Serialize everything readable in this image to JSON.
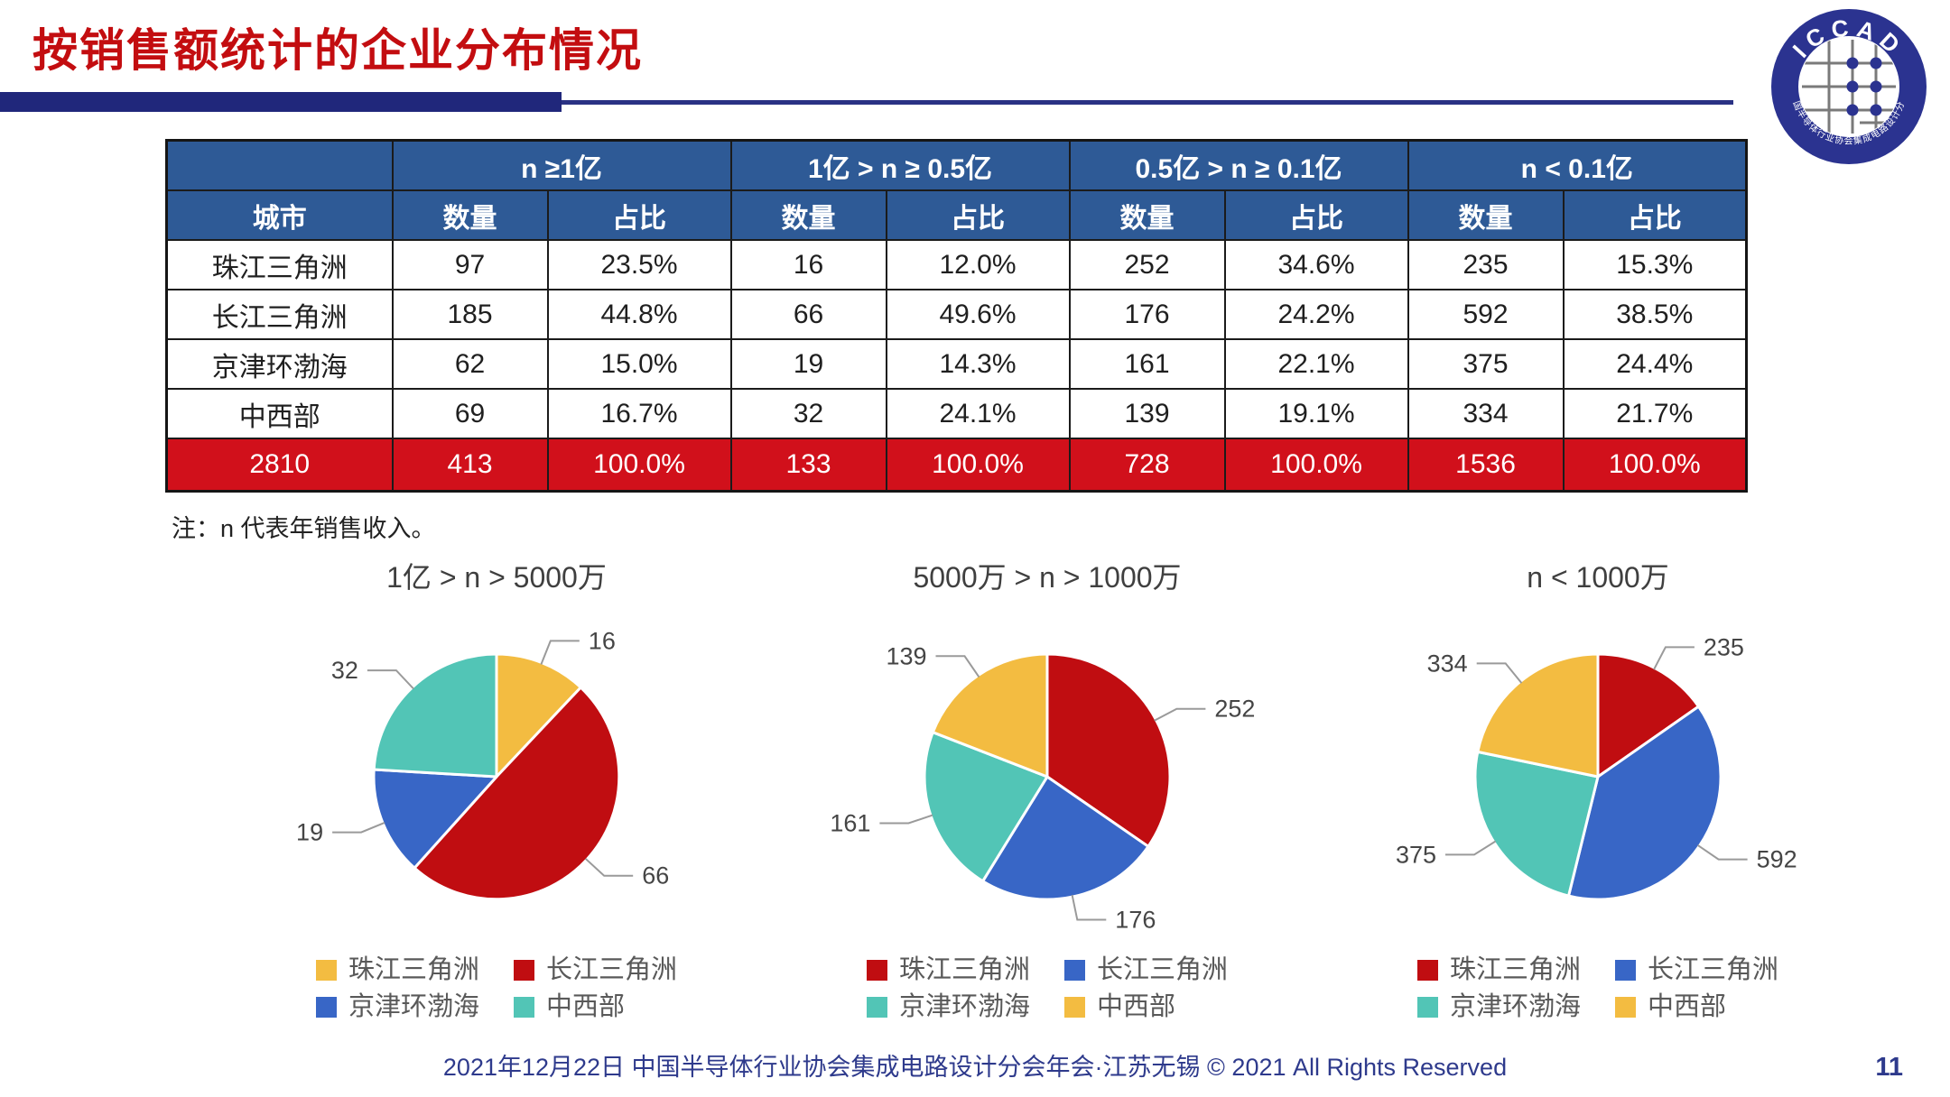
{
  "header": {
    "title": "按销售额统计的企业分布情况",
    "logo": {
      "text": "ICCAD",
      "subtext": "中国半导体行业协会集成电路设计分会",
      "color": "#2B3390"
    }
  },
  "table": {
    "corner": "",
    "city_header": "城市",
    "groups": [
      "n ≥1亿",
      "1亿 > n ≥ 0.5亿",
      "0.5亿 > n ≥ 0.1亿",
      "n < 0.1亿"
    ],
    "sub_headers": [
      "数量",
      "占比"
    ],
    "rows": [
      {
        "city": "珠江三角洲",
        "values": [
          "97",
          "23.5%",
          "16",
          "12.0%",
          "252",
          "34.6%",
          "235",
          "15.3%"
        ]
      },
      {
        "city": "长江三角洲",
        "values": [
          "185",
          "44.8%",
          "66",
          "49.6%",
          "176",
          "24.2%",
          "592",
          "38.5%"
        ]
      },
      {
        "city": "京津环渤海",
        "values": [
          "62",
          "15.0%",
          "19",
          "14.3%",
          "161",
          "22.1%",
          "375",
          "24.4%"
        ]
      },
      {
        "city": "中西部",
        "values": [
          "69",
          "16.7%",
          "32",
          "24.1%",
          "139",
          "19.1%",
          "334",
          "21.7%"
        ]
      }
    ],
    "total_row": {
      "city": "2810",
      "values": [
        "413",
        "100.0%",
        "133",
        "100.0%",
        "728",
        "100.0%",
        "1536",
        "100.0%"
      ]
    },
    "colors": {
      "header_bg": "#2E5A96",
      "header_text": "#FFFFFF",
      "total_bg": "#D1101B",
      "total_text": "#FFFFFF"
    }
  },
  "note": "注：n 代表年销售收入。",
  "chart_data": [
    {
      "type": "pie",
      "title": "1亿 > n > 5000万",
      "categories": [
        "珠江三角洲",
        "长江三角洲",
        "京津环渤海",
        "中西部"
      ],
      "values": [
        16,
        66,
        19,
        32
      ],
      "total": 133,
      "colors": [
        "#F3BC41",
        "#C00D11",
        "#3866C6",
        "#52C5B6"
      ],
      "legend_position": "bottom"
    },
    {
      "type": "pie",
      "title": "5000万 > n > 1000万",
      "categories": [
        "珠江三角洲",
        "长江三角洲",
        "京津环渤海",
        "中西部"
      ],
      "values": [
        252,
        176,
        161,
        139
      ],
      "total": 728,
      "colors": [
        "#C00D11",
        "#3866C6",
        "#52C5B6",
        "#F3BC41"
      ],
      "legend_position": "bottom"
    },
    {
      "type": "pie",
      "title": "n < 1000万",
      "categories": [
        "珠江三角洲",
        "长江三角洲",
        "京津环渤海",
        "中西部"
      ],
      "values": [
        235,
        592,
        375,
        334
      ],
      "total": 1536,
      "colors": [
        "#C00D11",
        "#3866C6",
        "#52C5B6",
        "#F3BC41"
      ],
      "legend_position": "bottom"
    }
  ],
  "footer": {
    "text": "2021年12月22日 中国半导体行业协会集成电路设计分会年会·江苏无锡 © 2021 All Rights Reserved",
    "page": "11"
  }
}
